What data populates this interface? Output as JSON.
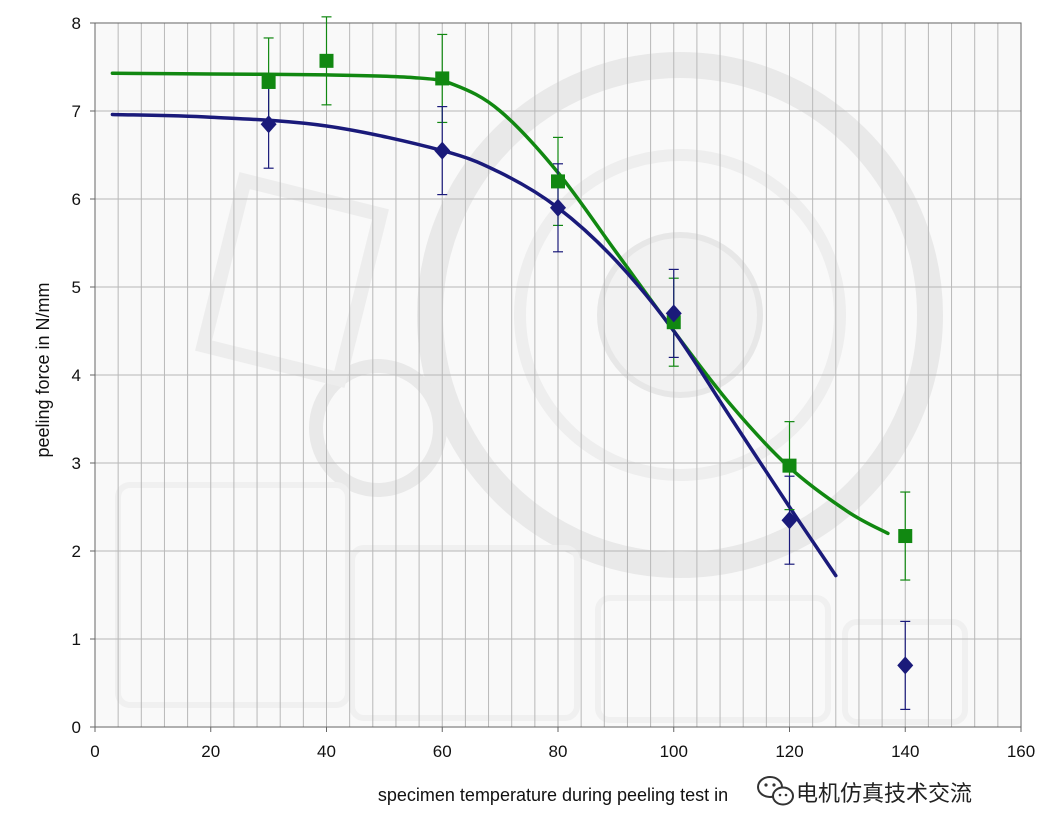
{
  "chart_data": {
    "type": "scatter",
    "xlabel": "specimen temperature during peeling test in",
    "ylabel": "peeling force in N/mm",
    "xlim": [
      0,
      160
    ],
    "ylim": [
      0,
      8
    ],
    "xticks": [
      "0",
      "20",
      "40",
      "60",
      "80",
      "100",
      "120",
      "140",
      "160"
    ],
    "yticks": [
      "0",
      "1",
      "2",
      "3",
      "4",
      "5",
      "6",
      "7",
      "8"
    ],
    "grid": true,
    "legend": "none",
    "series": [
      {
        "marker": "square",
        "color": "#118811",
        "points": [
          {
            "x": 30,
            "y": 7.33,
            "err": 0.5
          },
          {
            "x": 40,
            "y": 7.57,
            "err": 0.5
          },
          {
            "x": 60,
            "y": 7.37,
            "err": 0.5
          },
          {
            "x": 80,
            "y": 6.2,
            "err": 0.5
          },
          {
            "x": 100,
            "y": 4.6,
            "err": 0.5
          },
          {
            "x": 120,
            "y": 2.97,
            "err": 0.5
          },
          {
            "x": 140,
            "y": 2.17,
            "err": 0.5
          }
        ],
        "fit": [
          [
            3,
            7.43
          ],
          [
            20,
            7.42
          ],
          [
            40,
            7.41
          ],
          [
            55,
            7.38
          ],
          [
            62,
            7.3
          ],
          [
            70,
            7.0
          ],
          [
            80,
            6.3
          ],
          [
            90,
            5.4
          ],
          [
            100,
            4.5
          ],
          [
            110,
            3.65
          ],
          [
            120,
            2.95
          ],
          [
            130,
            2.45
          ],
          [
            137,
            2.2
          ]
        ]
      },
      {
        "marker": "diamond",
        "color": "#1a1a7a",
        "points": [
          {
            "x": 30,
            "y": 6.85,
            "err": 0.5
          },
          {
            "x": 60,
            "y": 6.55,
            "err": 0.5
          },
          {
            "x": 80,
            "y": 5.9,
            "err": 0.5
          },
          {
            "x": 100,
            "y": 4.7,
            "err": 0.5
          },
          {
            "x": 120,
            "y": 2.35,
            "err": 0.5
          },
          {
            "x": 140,
            "y": 0.7,
            "err": 0.5
          }
        ],
        "fit": [
          [
            3,
            6.96
          ],
          [
            20,
            6.93
          ],
          [
            40,
            6.83
          ],
          [
            60,
            6.55
          ],
          [
            70,
            6.3
          ],
          [
            80,
            5.9
          ],
          [
            90,
            5.3
          ],
          [
            100,
            4.5
          ],
          [
            110,
            3.5
          ],
          [
            120,
            2.5
          ],
          [
            128,
            1.72
          ]
        ]
      }
    ]
  },
  "watermark": {
    "icon": "wechat-icon",
    "text": "电机仿真技术交流"
  }
}
